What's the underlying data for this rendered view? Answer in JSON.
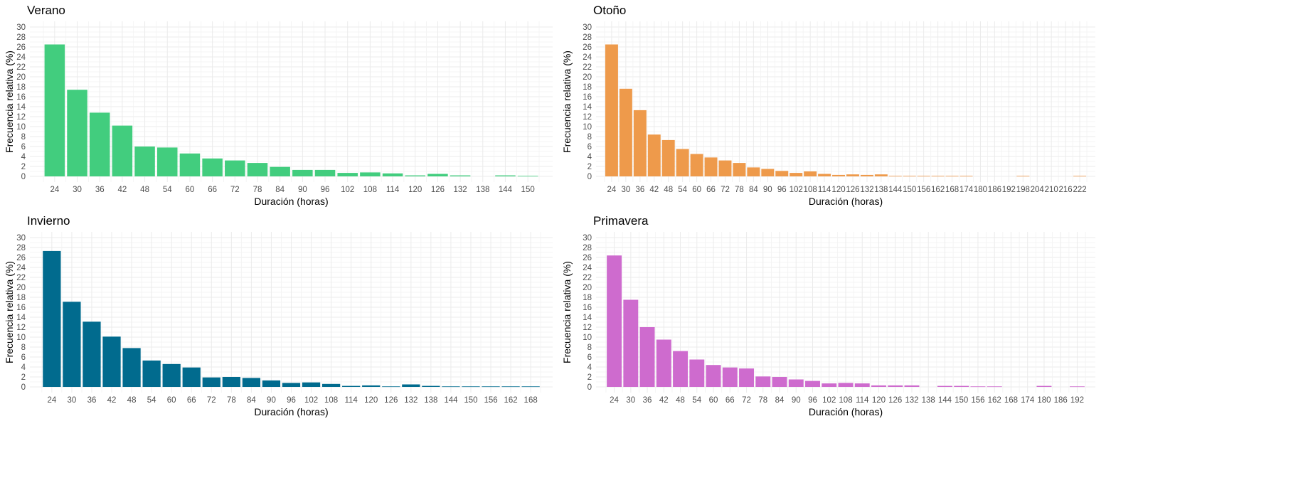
{
  "chart_data": [
    {
      "type": "bar",
      "title": "Verano",
      "xlabel": "Duración (horas)",
      "ylabel": "Frecuencia relativa (%)",
      "ylim": [
        0,
        30
      ],
      "yticks": [
        0,
        2,
        4,
        6,
        8,
        10,
        12,
        14,
        16,
        18,
        20,
        22,
        24,
        26,
        28,
        30
      ],
      "color": "#42CD7E",
      "categories": [
        "24",
        "30",
        "36",
        "42",
        "48",
        "54",
        "60",
        "66",
        "72",
        "78",
        "84",
        "90",
        "96",
        "102",
        "108",
        "114",
        "120",
        "126",
        "132",
        "138",
        "144",
        "150"
      ],
      "values": [
        26.5,
        17.4,
        12.8,
        10.2,
        6.0,
        5.8,
        4.6,
        3.6,
        3.2,
        2.7,
        1.9,
        1.3,
        1.3,
        0.7,
        0.8,
        0.6,
        0.2,
        0.5,
        0.2,
        0,
        0.2,
        0.1
      ]
    },
    {
      "type": "bar",
      "title": "Otoño",
      "xlabel": "Duración (horas)",
      "ylabel": "Frecuencia relativa (%)",
      "ylim": [
        0,
        30
      ],
      "yticks": [
        0,
        2,
        4,
        6,
        8,
        10,
        12,
        14,
        16,
        18,
        20,
        22,
        24,
        26,
        28,
        30
      ],
      "color": "#EE9A4B",
      "categories": [
        "24",
        "30",
        "36",
        "42",
        "48",
        "54",
        "60",
        "66",
        "72",
        "78",
        "84",
        "90",
        "96",
        "102",
        "108",
        "114",
        "120",
        "126",
        "132",
        "138",
        "144",
        "150",
        "156",
        "162",
        "168",
        "174",
        "180",
        "186",
        "192",
        "198",
        "204",
        "210",
        "216",
        "222"
      ],
      "values": [
        26.5,
        17.6,
        13.3,
        8.4,
        7.3,
        5.5,
        4.5,
        3.8,
        3.2,
        2.7,
        1.8,
        1.5,
        1.1,
        0.7,
        1.0,
        0.5,
        0.3,
        0.4,
        0.3,
        0.4,
        0.1,
        0.1,
        0.1,
        0.1,
        0.1,
        0.1,
        0,
        0,
        0,
        0.1,
        0,
        0,
        0,
        0.1
      ]
    },
    {
      "type": "bar",
      "title": "Invierno",
      "xlabel": "Duración (horas)",
      "ylabel": "Frecuencia relativa (%)",
      "ylim": [
        0,
        30
      ],
      "yticks": [
        0,
        2,
        4,
        6,
        8,
        10,
        12,
        14,
        16,
        18,
        20,
        22,
        24,
        26,
        28,
        30
      ],
      "color": "#016B8E",
      "categories": [
        "24",
        "30",
        "36",
        "42",
        "48",
        "54",
        "60",
        "66",
        "72",
        "78",
        "84",
        "90",
        "96",
        "102",
        "108",
        "114",
        "120",
        "126",
        "132",
        "138",
        "144",
        "150",
        "156",
        "162",
        "168"
      ],
      "values": [
        27.3,
        17.1,
        13.1,
        10.1,
        7.8,
        5.3,
        4.6,
        3.9,
        1.9,
        2.0,
        1.8,
        1.3,
        0.8,
        0.9,
        0.6,
        0.2,
        0.3,
        0.1,
        0.5,
        0.2,
        0.1,
        0.1,
        0.1,
        0.1,
        0.1
      ]
    },
    {
      "type": "bar",
      "title": "Primavera",
      "xlabel": "Duración (horas)",
      "ylabel": "Frecuencia relativa (%)",
      "ylim": [
        0,
        30
      ],
      "yticks": [
        0,
        2,
        4,
        6,
        8,
        10,
        12,
        14,
        16,
        18,
        20,
        22,
        24,
        26,
        28,
        30
      ],
      "color": "#CE6BCE",
      "categories": [
        "24",
        "30",
        "36",
        "42",
        "48",
        "54",
        "60",
        "66",
        "72",
        "78",
        "84",
        "90",
        "96",
        "102",
        "108",
        "114",
        "120",
        "126",
        "132",
        "138",
        "144",
        "150",
        "156",
        "162",
        "168",
        "174",
        "180",
        "186",
        "192"
      ],
      "values": [
        26.4,
        17.5,
        12.0,
        9.5,
        7.2,
        5.5,
        4.4,
        3.9,
        3.7,
        2.1,
        2.0,
        1.5,
        1.2,
        0.7,
        0.8,
        0.7,
        0.3,
        0.3,
        0.3,
        0,
        0.2,
        0.2,
        0.1,
        0.1,
        0,
        0,
        0.2,
        0,
        0.1
      ]
    }
  ]
}
